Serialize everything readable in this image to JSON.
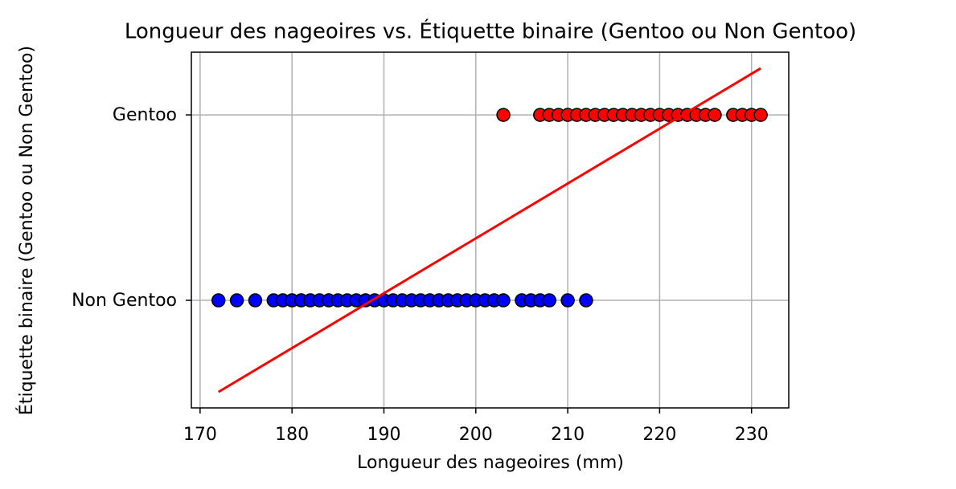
{
  "chart_data": {
    "type": "scatter",
    "title": "Longueur des nageoires vs. Étiquette binaire (Gentoo ou Non Gentoo)",
    "x_label": "Longueur des nageoires (mm)",
    "y_label": "Étiquette binaire (Gentoo ou Non Gentoo)",
    "xlim": [
      169.05,
      234.05
    ],
    "ylim": [
      -0.58,
      1.338
    ],
    "xticks": [
      170,
      180,
      190,
      200,
      210,
      220,
      230
    ],
    "yticks": [
      {
        "value": 0,
        "label": "Non Gentoo"
      },
      {
        "value": 1,
        "label": "Gentoo"
      }
    ],
    "grid": true,
    "series": [
      {
        "type": "scatter",
        "color": "#0000ff",
        "edgecolor": "#000000",
        "x": [
          172,
          174,
          176,
          178,
          179,
          180,
          181,
          182,
          183,
          184,
          185,
          186,
          187,
          188,
          189,
          190,
          191,
          192,
          193,
          194,
          195,
          196,
          197,
          198,
          199,
          200,
          201,
          202,
          203,
          205,
          206,
          207,
          208,
          210,
          212
        ],
        "values": [
          0,
          0,
          0,
          0,
          0,
          0,
          0,
          0,
          0,
          0,
          0,
          0,
          0,
          0,
          0,
          0,
          0,
          0,
          0,
          0,
          0,
          0,
          0,
          0,
          0,
          0,
          0,
          0,
          0,
          0,
          0,
          0,
          0,
          0,
          0
        ]
      },
      {
        "type": "scatter",
        "color": "#ff0000",
        "edgecolor": "#000000",
        "x": [
          203,
          207,
          208,
          209,
          210,
          211,
          212,
          213,
          214,
          215,
          216,
          217,
          218,
          219,
          220,
          221,
          222,
          223,
          224,
          225,
          226,
          228,
          229,
          230,
          231
        ],
        "values": [
          1,
          1,
          1,
          1,
          1,
          1,
          1,
          1,
          1,
          1,
          1,
          1,
          1,
          1,
          1,
          1,
          1,
          1,
          1,
          1,
          1,
          1,
          1,
          1,
          1
        ]
      },
      {
        "type": "line",
        "color": "#ff0000",
        "x": [
          172,
          231
        ],
        "values": [
          -0.494,
          1.251
        ]
      }
    ]
  }
}
